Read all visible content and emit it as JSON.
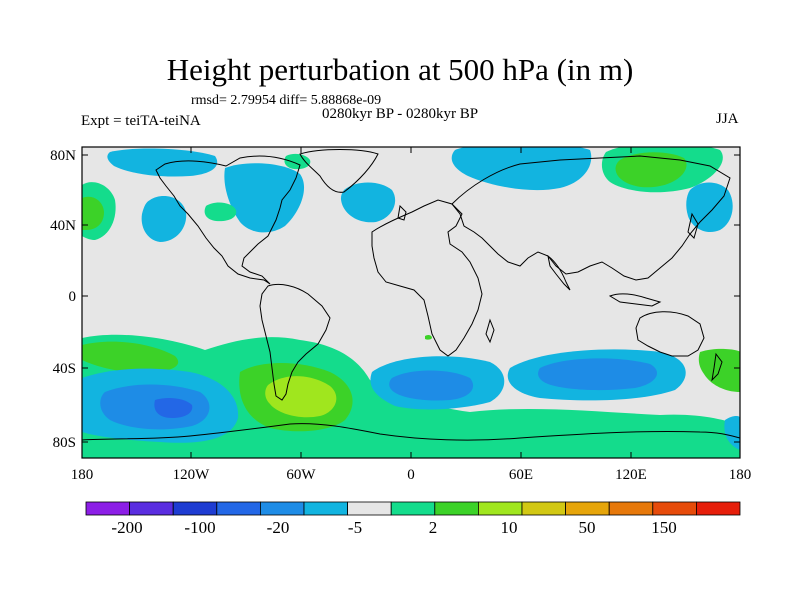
{
  "figure": {
    "title": "Height perturbation at 500 hPa (in m)",
    "stats": "rmsd= 2.79954 diff= 5.88868e-09",
    "period": "0280kyr BP - 0280kyr BP",
    "experiment": "Expt = teiTA-teiNA",
    "season": "JJA"
  },
  "map": {
    "lat_labels": [
      "80N",
      "40N",
      "0",
      "40S",
      "80S"
    ],
    "lon_labels": [
      "180",
      "120W",
      "60W",
      "0",
      "60E",
      "120E",
      "180"
    ]
  },
  "colorbar": {
    "colors": [
      "#8c1ee6",
      "#5a2de0",
      "#1e3cd2",
      "#2367e6",
      "#1e8ce6",
      "#12b4e0",
      "#e6e6e6",
      "#14dc8c",
      "#3cd228",
      "#a0e61e",
      "#d2c814",
      "#e6a50a",
      "#e6780a",
      "#e64b0a",
      "#e61e0a"
    ],
    "labels": [
      "-200",
      "-100",
      "-20",
      "-5",
      "2",
      "10",
      "50",
      "150"
    ]
  },
  "field_colors": {
    "ocean_neutral": "#e6e6e6",
    "light_blue": "#12b4e0",
    "mid_blue": "#1e8ce6",
    "dark_blue": "#2367e6",
    "teal_green": "#14dc8c",
    "green": "#3cd228",
    "yellow_green": "#a0e61e",
    "coast": "#000000"
  }
}
